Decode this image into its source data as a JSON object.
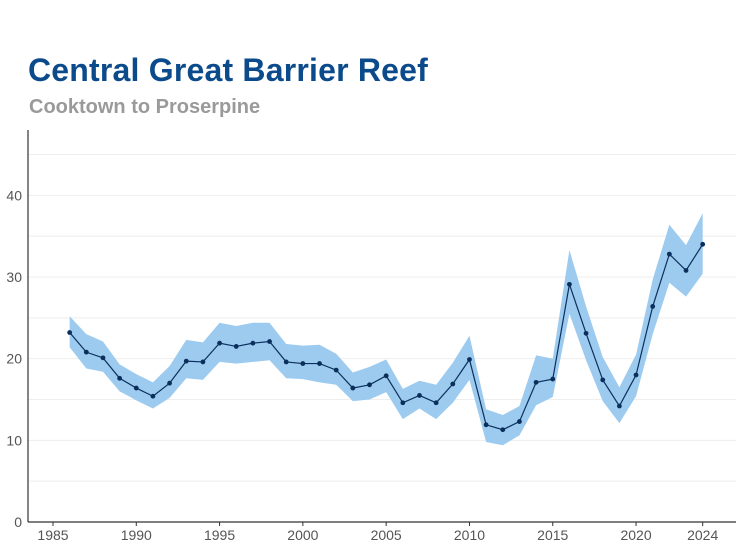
{
  "header": {
    "title": "Central Great Barrier Reef",
    "subtitle": "Cooktown to Proserpine"
  },
  "colors": {
    "title": "#0b4a8b",
    "subtitle": "#9a9a9a",
    "band": "#9ccbef",
    "line": "#0b2f5c",
    "point": "#0b2f5c",
    "grid": "#eeeeee",
    "axis": "#333333"
  },
  "chart_data": {
    "type": "line",
    "title": "Central Great Barrier Reef",
    "subtitle": "Cooktown to Proserpine",
    "xlabel": "",
    "ylabel": "",
    "xlim": [
      1983.5,
      2026
    ],
    "ylim": [
      0,
      48
    ],
    "xticks": [
      1985,
      1990,
      1995,
      2000,
      2005,
      2010,
      2015,
      2020,
      2024
    ],
    "yticks": [
      0,
      10,
      20,
      30,
      40
    ],
    "grid": true,
    "legend": "none",
    "x": [
      1986,
      1987,
      1988,
      1989,
      1990,
      1991,
      1992,
      1993,
      1994,
      1995,
      1996,
      1997,
      1998,
      1999,
      2000,
      2001,
      2002,
      2003,
      2004,
      2005,
      2006,
      2007,
      2008,
      2009,
      2010,
      2011,
      2012,
      2013,
      2014,
      2015,
      2016,
      2017,
      2018,
      2019,
      2020,
      2021,
      2022,
      2023,
      2024
    ],
    "series": [
      {
        "values": [
          23.2,
          20.8,
          20.1,
          17.6,
          16.4,
          15.4,
          17.0,
          19.7,
          19.6,
          21.9,
          21.5,
          21.9,
          22.1,
          19.6,
          19.4,
          19.4,
          18.6,
          16.4,
          16.8,
          17.9,
          14.6,
          15.5,
          14.6,
          16.9,
          19.9,
          11.9,
          11.3,
          12.3,
          17.1,
          17.5,
          29.1,
          23.1,
          17.4,
          14.2,
          18.0,
          26.4,
          32.8,
          30.8,
          34.0
        ],
        "lower": [
          21.4,
          18.8,
          18.4,
          16.0,
          14.9,
          13.9,
          15.2,
          17.6,
          17.4,
          19.6,
          19.4,
          19.6,
          19.8,
          17.6,
          17.5,
          17.1,
          16.8,
          14.8,
          15.0,
          15.9,
          12.6,
          13.9,
          12.6,
          14.6,
          17.4,
          9.8,
          9.4,
          10.6,
          14.3,
          15.3,
          25.5,
          19.8,
          14.8,
          12.1,
          15.4,
          23.0,
          29.3,
          27.6,
          30.4
        ],
        "upper": [
          25.2,
          23.0,
          22.1,
          19.3,
          18.1,
          17.1,
          19.1,
          22.3,
          22.0,
          24.4,
          24.0,
          24.4,
          24.4,
          21.8,
          21.6,
          21.7,
          20.6,
          18.3,
          19.0,
          19.9,
          16.3,
          17.3,
          16.8,
          19.5,
          22.8,
          13.8,
          13.1,
          14.2,
          20.4,
          20.0,
          33.3,
          26.4,
          20.2,
          16.5,
          20.5,
          29.7,
          36.4,
          33.9,
          37.8
        ]
      }
    ]
  }
}
